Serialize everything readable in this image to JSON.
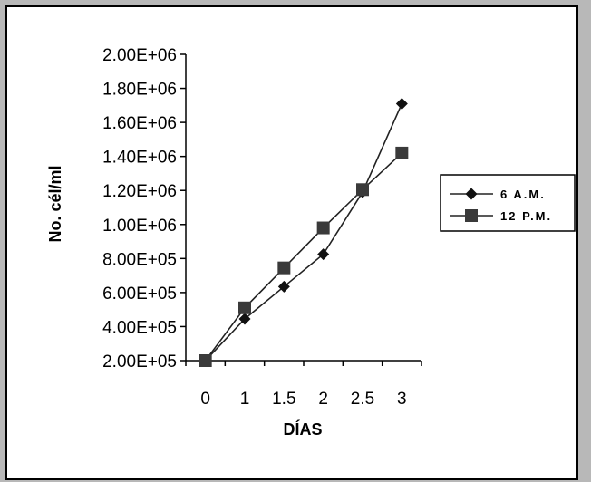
{
  "chart_data": {
    "type": "line",
    "x": [
      "0",
      "1",
      "1.5",
      "2",
      "2.5",
      "3"
    ],
    "series": [
      {
        "name": "6 A.M.",
        "marker": "diamond",
        "values": [
          200000,
          445000,
          635000,
          825000,
          1190000,
          1710000
        ]
      },
      {
        "name": "12 P.M.",
        "marker": "square",
        "values": [
          200000,
          510000,
          745000,
          980000,
          1205000,
          1420000
        ]
      }
    ],
    "ylim": [
      200000,
      2000000
    ],
    "y_step": 200000,
    "yticks": [
      "2.00E+05",
      "4.00E+05",
      "6.00E+05",
      "8.00E+05",
      "1.00E+06",
      "1.20E+06",
      "1.40E+06",
      "1.60E+06",
      "1.80E+06",
      "2.00E+06"
    ],
    "xlabel": "DÍAS",
    "ylabel": "No. cél/ml",
    "legend_position": "right",
    "grid": false,
    "colors": {
      "line": "#000000",
      "marker": "#3a3a3a",
      "frame_bg": "#b8b8b8"
    }
  }
}
